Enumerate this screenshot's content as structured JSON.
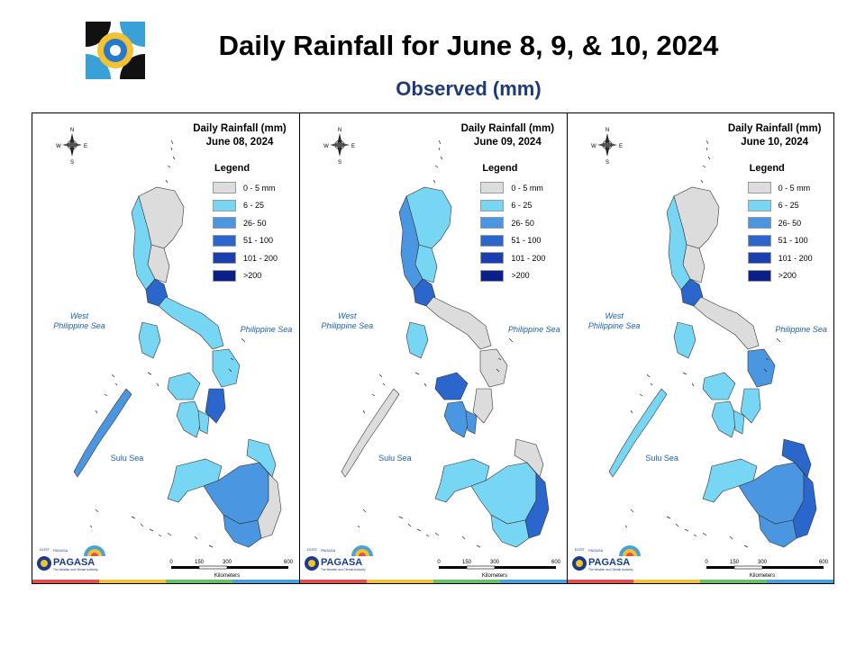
{
  "header": {
    "title": "Daily Rainfall for June 8, 9, & 10, 2024",
    "subtitle": "Observed (mm)"
  },
  "colors": {
    "c0": "#dcdcdc",
    "c1": "#78d6f5",
    "c2": "#4a96e0",
    "c3": "#2a66cc",
    "c4": "#1a3fae",
    "c5": "#0a1f8a",
    "sea_label": "#2060a8",
    "bottom_bar": [
      "#e05050",
      "#f0c040",
      "#6abf69",
      "#4aa0d8"
    ]
  },
  "legend": {
    "title": "Legend",
    "items": [
      {
        "label": "0 - 5 mm",
        "color": "#dcdcdc"
      },
      {
        "label": "6 - 25",
        "color": "#78d6f5"
      },
      {
        "label": "26- 50",
        "color": "#4a96e0"
      },
      {
        "label": "51 - 100",
        "color": "#2a66cc"
      },
      {
        "label": "101 - 200",
        "color": "#1a3fae"
      },
      {
        "label": ">200",
        "color": "#0a1f8a"
      }
    ]
  },
  "labels": {
    "west_sea_1": "West",
    "west_sea_2": "Philippine Sea",
    "phil_sea": "Philippine Sea",
    "sulu_sea": "Sulu Sea",
    "compass_n": "N",
    "compass_s": "S",
    "compass_e": "E",
    "compass_w": "W",
    "scale_ticks": [
      "0",
      "150",
      "300",
      "600"
    ],
    "scale_unit": "Kilometers",
    "agency": "PAGASA",
    "agency_tag": "The Weather and Climate Authority",
    "agency_prefix": "DOST",
    "agency_prefix2": "PAGASA"
  },
  "panels": [
    {
      "map_title": "Daily Rainfall (mm)",
      "date": "June 08, 2024",
      "regions": {
        "ilocos": 1,
        "cagayan": 0,
        "manila": 3,
        "bicol": 1,
        "mindoro": 1,
        "samar": 1,
        "leyte": 3,
        "panay": 1,
        "negros": 1,
        "palawan": 2,
        "mindanao_w": 1,
        "mindanao_c": 2,
        "mindanao_e": 1,
        "davao": 0
      }
    },
    {
      "map_title": "Daily Rainfall (mm)",
      "date": "June 09, 2024",
      "regions": {
        "ilocos": 2,
        "cagayan": 1,
        "manila": 3,
        "bicol": 0,
        "mindoro": 1,
        "samar": 0,
        "leyte": 0,
        "panay": 3,
        "negros": 2,
        "palawan": 0,
        "mindanao_w": 1,
        "mindanao_c": 1,
        "mindanao_e": 0,
        "davao": 3
      }
    },
    {
      "map_title": "Daily Rainfall (mm)",
      "date": "June 10, 2024",
      "regions": {
        "ilocos": 1,
        "cagayan": 0,
        "manila": 3,
        "bicol": 0,
        "mindoro": 1,
        "samar": 2,
        "leyte": 1,
        "panay": 1,
        "negros": 1,
        "palawan": 1,
        "mindanao_w": 1,
        "mindanao_c": 2,
        "mindanao_e": 3,
        "davao": 3
      }
    }
  ]
}
